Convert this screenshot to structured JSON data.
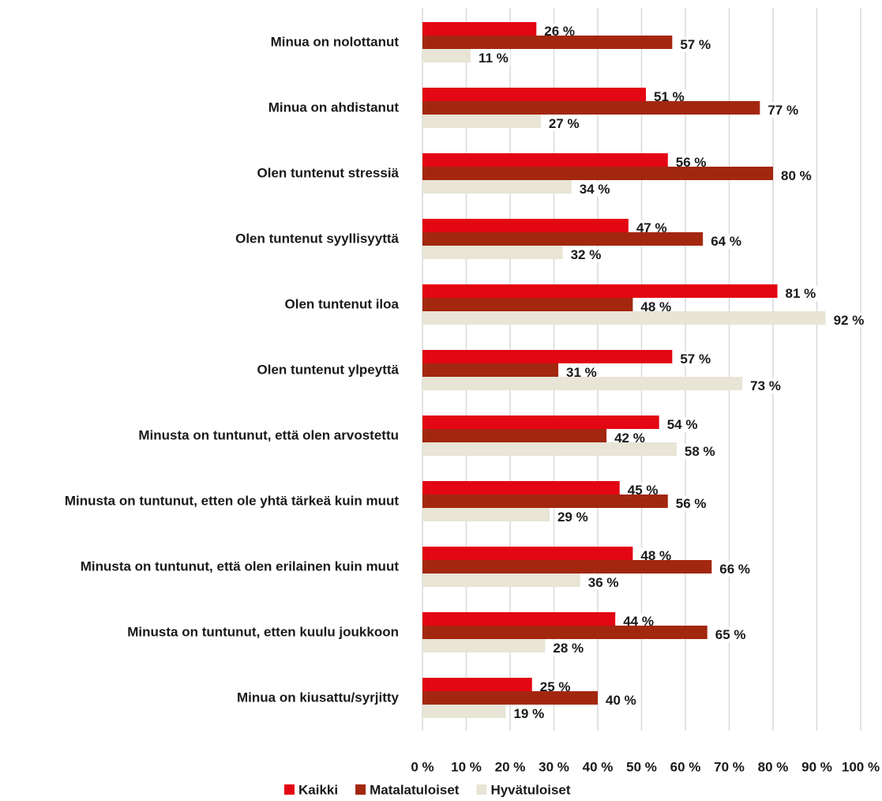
{
  "chart_data": {
    "type": "bar",
    "orientation": "horizontal",
    "categories": [
      "Minua on nolottanut",
      "Minua on ahdistanut",
      "Olen tuntenut stressiä",
      "Olen tuntenut syyllisyyttä",
      "Olen tuntenut iloa",
      "Olen tuntenut ylpeyttä",
      "Minusta on tuntunut, että olen arvostettu",
      "Minusta on tuntunut, etten ole yhtä tärkeä kuin muut",
      "Minusta on tuntunut, että olen erilainen kuin muut",
      "Minusta on tuntunut, etten kuulu joukkoon",
      "Minua on kiusattu/syrjitty"
    ],
    "series": [
      {
        "name": "Kaikki",
        "color": "#e30613",
        "values": [
          26,
          51,
          56,
          47,
          81,
          57,
          54,
          45,
          48,
          44,
          25
        ],
        "value_labels": [
          "26 %",
          "51 %",
          "56 %",
          "47 %",
          "81 %",
          "57 %",
          "54 %",
          "45 %",
          "48 %",
          "44 %",
          "25 %"
        ]
      },
      {
        "name": "Matalatuloiset",
        "color": "#a3270f",
        "values": [
          57,
          77,
          80,
          64,
          48,
          31,
          42,
          56,
          66,
          65,
          40
        ],
        "value_labels": [
          "57 %",
          "77 %",
          "80 %",
          "64 %",
          "48 %",
          "31 %",
          "42 %",
          "56 %",
          "66 %",
          "65 %",
          "40 %"
        ]
      },
      {
        "name": "Hyvätuloiset",
        "color": "#e8e4d6",
        "values": [
          11,
          27,
          34,
          32,
          92,
          73,
          58,
          29,
          36,
          28,
          19
        ],
        "value_labels": [
          "11 %",
          "27 %",
          "34 %",
          "32 %",
          "92 %",
          "73 %",
          "58 %",
          "29 %",
          "36 %",
          "28 %",
          "19 %"
        ]
      }
    ],
    "xlim": [
      0,
      100
    ],
    "xticks": [
      {
        "value": 0,
        "label": "0 %"
      },
      {
        "value": 10,
        "label": "10 %"
      },
      {
        "value": 20,
        "label": "20 %"
      },
      {
        "value": 30,
        "label": "30 %"
      },
      {
        "value": 40,
        "label": "40 %"
      },
      {
        "value": 50,
        "label": "50 %"
      },
      {
        "value": 60,
        "label": "60 %"
      },
      {
        "value": 70,
        "label": "70 %"
      },
      {
        "value": 80,
        "label": "80 %"
      },
      {
        "value": 90,
        "label": "90 %"
      },
      {
        "value": 100,
        "label": "100 %"
      }
    ],
    "grid": true,
    "legend": "bottom"
  }
}
